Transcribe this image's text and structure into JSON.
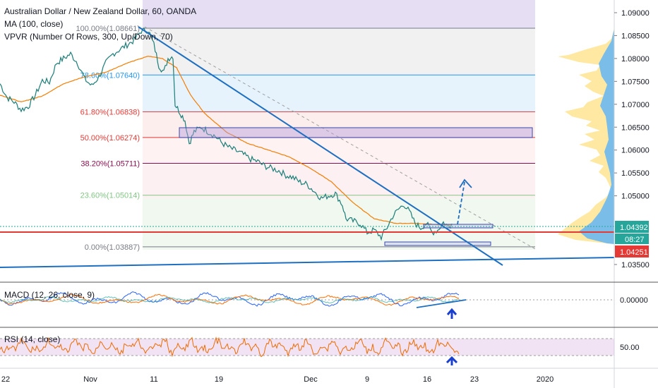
{
  "header": {
    "title": "Australian Dollar / New Zealand Dollar, 60, OANDA",
    "ma": "MA (100, close)",
    "vpvr": "VPVR (Number Of Rows, 300, Up/Down, 70)"
  },
  "chart_data": {
    "type": "line",
    "price_axis": [
      "1.09000",
      "1.08500",
      "1.08000",
      "1.07500",
      "1.07000",
      "1.06500",
      "1.06000",
      "1.05500",
      "1.05000",
      "1.03500"
    ],
    "price_badges": {
      "current": "1.04392",
      "countdown": "08:27",
      "red": "1.04251"
    },
    "fib_levels": [
      {
        "label": "100.00%(1.08661)",
        "value": 1.08661,
        "color": "#787b86"
      },
      {
        "label": "78.60%(1.07640)",
        "value": 1.0764,
        "color": "#2196f3"
      },
      {
        "label": "61.80%(1.06838)",
        "value": 1.06838,
        "color": "#e53935"
      },
      {
        "label": "50.00%(1.06274)",
        "value": 1.06274,
        "color": "#e53935"
      },
      {
        "label": "38.20%(1.05711)",
        "value": 1.05711,
        "color": "#880e4f"
      },
      {
        "label": "23.60%(1.05014)",
        "value": 1.05014,
        "color": "#81c784"
      },
      {
        "label": "0.00%(1.03887)",
        "value": 1.03887,
        "color": "#787b86"
      }
    ],
    "x_axis": [
      "22",
      "Nov",
      "11",
      "19",
      "Dec",
      "9",
      "16",
      "23",
      "2020"
    ],
    "price_path": [
      [
        0,
        1.0745
      ],
      [
        10,
        1.0715
      ],
      [
        20,
        1.0705
      ],
      [
        30,
        1.0688
      ],
      [
        40,
        1.0695
      ],
      [
        50,
        1.072
      ],
      [
        60,
        1.0752
      ],
      [
        70,
        1.0748
      ],
      [
        80,
        1.079
      ],
      [
        90,
        1.08
      ],
      [
        100,
        1.081
      ],
      [
        110,
        1.079
      ],
      [
        120,
        1.0755
      ],
      [
        130,
        1.074
      ],
      [
        140,
        1.076
      ],
      [
        150,
        1.079
      ],
      [
        160,
        1.081
      ],
      [
        170,
        1.082
      ],
      [
        180,
        1.083
      ],
      [
        190,
        1.084
      ],
      [
        200,
        1.086
      ],
      [
        210,
        1.0862
      ],
      [
        218,
        1.083
      ],
      [
        225,
        1.0785
      ],
      [
        232,
        1.077
      ],
      [
        238,
        1.08
      ],
      [
        245,
        1.0805
      ],
      [
        248,
        1.07
      ],
      [
        255,
        1.0682
      ],
      [
        262,
        1.0665
      ],
      [
        268,
        1.0615
      ],
      [
        275,
        1.064
      ],
      [
        285,
        1.065
      ],
      [
        295,
        1.064
      ],
      [
        305,
        1.063
      ],
      [
        315,
        1.0615
      ],
      [
        325,
        1.0605
      ],
      [
        335,
        1.0598
      ],
      [
        345,
        1.059
      ],
      [
        355,
        1.058
      ],
      [
        365,
        1.0575
      ],
      [
        375,
        1.0565
      ],
      [
        385,
        1.056
      ],
      [
        395,
        1.0555
      ],
      [
        405,
        1.0545
      ],
      [
        415,
        1.054
      ],
      [
        425,
        1.053
      ],
      [
        435,
        1.0525
      ],
      [
        445,
        1.051
      ],
      [
        455,
        1.0495
      ],
      [
        465,
        1.05
      ],
      [
        475,
        1.0505
      ],
      [
        485,
        1.048
      ],
      [
        490,
        1.045
      ],
      [
        500,
        1.0445
      ],
      [
        510,
        1.044
      ],
      [
        520,
        1.042
      ],
      [
        530,
        1.0425
      ],
      [
        540,
        1.041
      ],
      [
        548,
        1.043
      ],
      [
        556,
        1.0455
      ],
      [
        564,
        1.047
      ],
      [
        572,
        1.0482
      ],
      [
        580,
        1.0465
      ],
      [
        588,
        1.044
      ],
      [
        596,
        1.043
      ],
      [
        604,
        1.044
      ],
      [
        612,
        1.042
      ],
      [
        620,
        1.0425
      ],
      [
        628,
        1.0442
      ],
      [
        636,
        1.0432
      ],
      [
        640,
        1.0439
      ]
    ],
    "ma_path": [
      [
        0,
        1.072
      ],
      [
        30,
        1.0705
      ],
      [
        60,
        1.0718
      ],
      [
        90,
        1.0745
      ],
      [
        120,
        1.076
      ],
      [
        150,
        1.077
      ],
      [
        180,
        1.079
      ],
      [
        210,
        1.0805
      ],
      [
        230,
        1.08
      ],
      [
        250,
        1.078
      ],
      [
        270,
        1.072
      ],
      [
        290,
        1.068
      ],
      [
        320,
        1.064
      ],
      [
        350,
        1.0615
      ],
      [
        380,
        1.06
      ],
      [
        410,
        1.0585
      ],
      [
        440,
        1.056
      ],
      [
        470,
        1.053
      ],
      [
        500,
        1.0485
      ],
      [
        530,
        1.045
      ],
      [
        560,
        1.044
      ],
      [
        590,
        1.044
      ],
      [
        620,
        1.0437
      ],
      [
        640,
        1.0436
      ]
    ],
    "macd": {
      "label": "MACD (12, 26, close, 9)",
      "tick": "0.00000"
    },
    "rsi": {
      "label": "RSI (14, close)",
      "tick": "50.00"
    }
  }
}
